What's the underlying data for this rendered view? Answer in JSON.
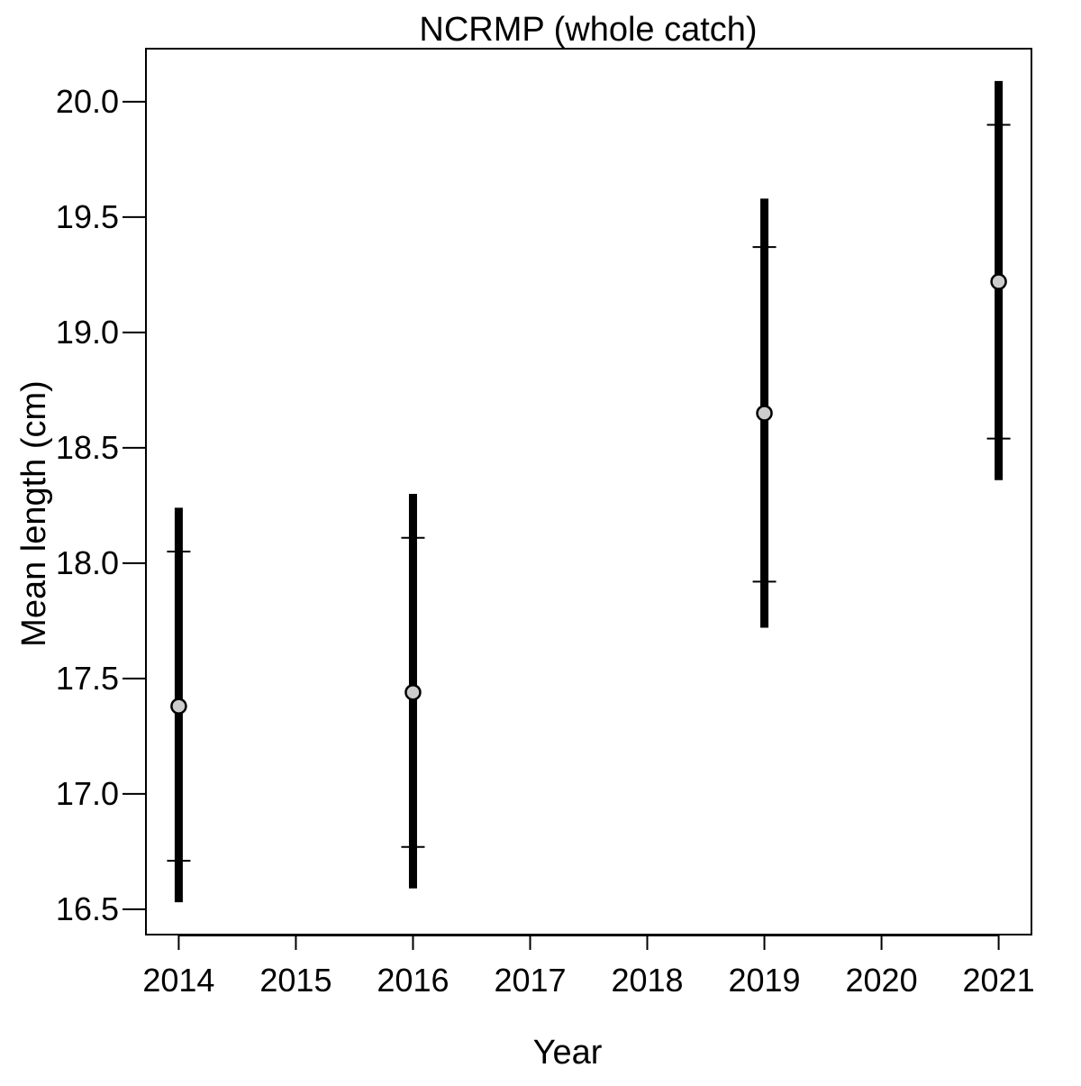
{
  "chart_data": {
    "type": "scatter",
    "title": "NCRMP (whole catch)",
    "xlabel": "Year",
    "ylabel": "Mean length (cm)",
    "xlim": [
      2013.72,
      2021.28
    ],
    "ylim": [
      16.39,
      20.23
    ],
    "x_ticks": [
      2014,
      2015,
      2016,
      2017,
      2018,
      2019,
      2020,
      2021
    ],
    "y_ticks": [
      16.5,
      17.0,
      17.5,
      18.0,
      18.5,
      19.0,
      19.5,
      20.0
    ],
    "y_tick_labels": [
      "16.5",
      "17.0",
      "17.5",
      "18.0",
      "18.5",
      "19.0",
      "19.5",
      "20.0"
    ],
    "grid": false,
    "series": [
      {
        "points": [
          {
            "x": 2014,
            "y": 17.38,
            "outer_low": 16.53,
            "outer_high": 18.24,
            "inner_low": 16.71,
            "inner_high": 18.05
          },
          {
            "x": 2016,
            "y": 17.44,
            "outer_low": 16.59,
            "outer_high": 18.3,
            "inner_low": 16.77,
            "inner_high": 18.11
          },
          {
            "x": 2019,
            "y": 18.65,
            "outer_low": 17.72,
            "outer_high": 19.58,
            "inner_low": 17.92,
            "inner_high": 19.37
          },
          {
            "x": 2021,
            "y": 19.22,
            "outer_low": 18.36,
            "outer_high": 20.09,
            "inner_low": 18.54,
            "inner_high": 19.9
          }
        ]
      }
    ],
    "colors": {
      "interval": "#000000",
      "point_fill": "#cccccc",
      "point_stroke": "#000000"
    }
  }
}
